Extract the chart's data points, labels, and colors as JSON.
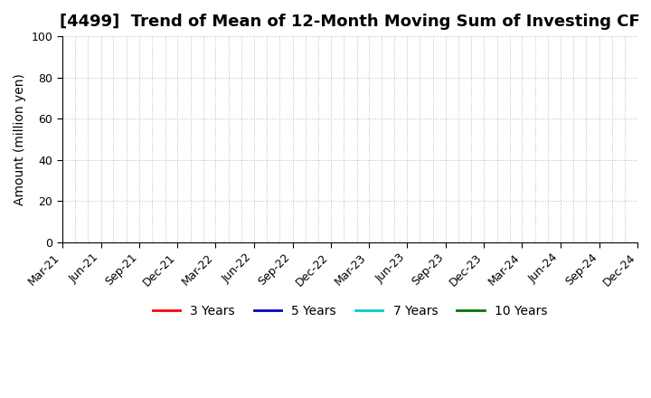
{
  "title": "[4499]  Trend of Mean of 12-Month Moving Sum of Investing CF",
  "ylabel": "Amount (million yen)",
  "ylim": [
    0,
    100
  ],
  "yticks": [
    0,
    20,
    40,
    60,
    80,
    100
  ],
  "x_labels": [
    "Mar-21",
    "Jun-21",
    "Sep-21",
    "Dec-21",
    "Mar-22",
    "Jun-22",
    "Sep-22",
    "Dec-22",
    "Mar-23",
    "Jun-23",
    "Sep-23",
    "Dec-23",
    "Mar-24",
    "Jun-24",
    "Sep-24",
    "Dec-24"
  ],
  "legend_entries": [
    {
      "label": "3 Years",
      "color": "#ff0000"
    },
    {
      "label": "5 Years",
      "color": "#0000bb"
    },
    {
      "label": "7 Years",
      "color": "#00cccc"
    },
    {
      "label": "10 Years",
      "color": "#007700"
    }
  ],
  "background_color": "#ffffff",
  "grid_h_color": "#bbbbbb",
  "grid_v_color": "#bbbbbb",
  "title_fontsize": 13,
  "axis_label_fontsize": 10,
  "tick_fontsize": 9,
  "legend_fontsize": 10,
  "n_months_total": 46,
  "major_tick_months": [
    "Mar-21",
    "Jun-21",
    "Sep-21",
    "Dec-21",
    "Mar-22",
    "Jun-22",
    "Sep-22",
    "Dec-22",
    "Mar-23",
    "Jun-23",
    "Sep-23",
    "Dec-23",
    "Mar-24",
    "Jun-24",
    "Sep-24",
    "Dec-24"
  ]
}
